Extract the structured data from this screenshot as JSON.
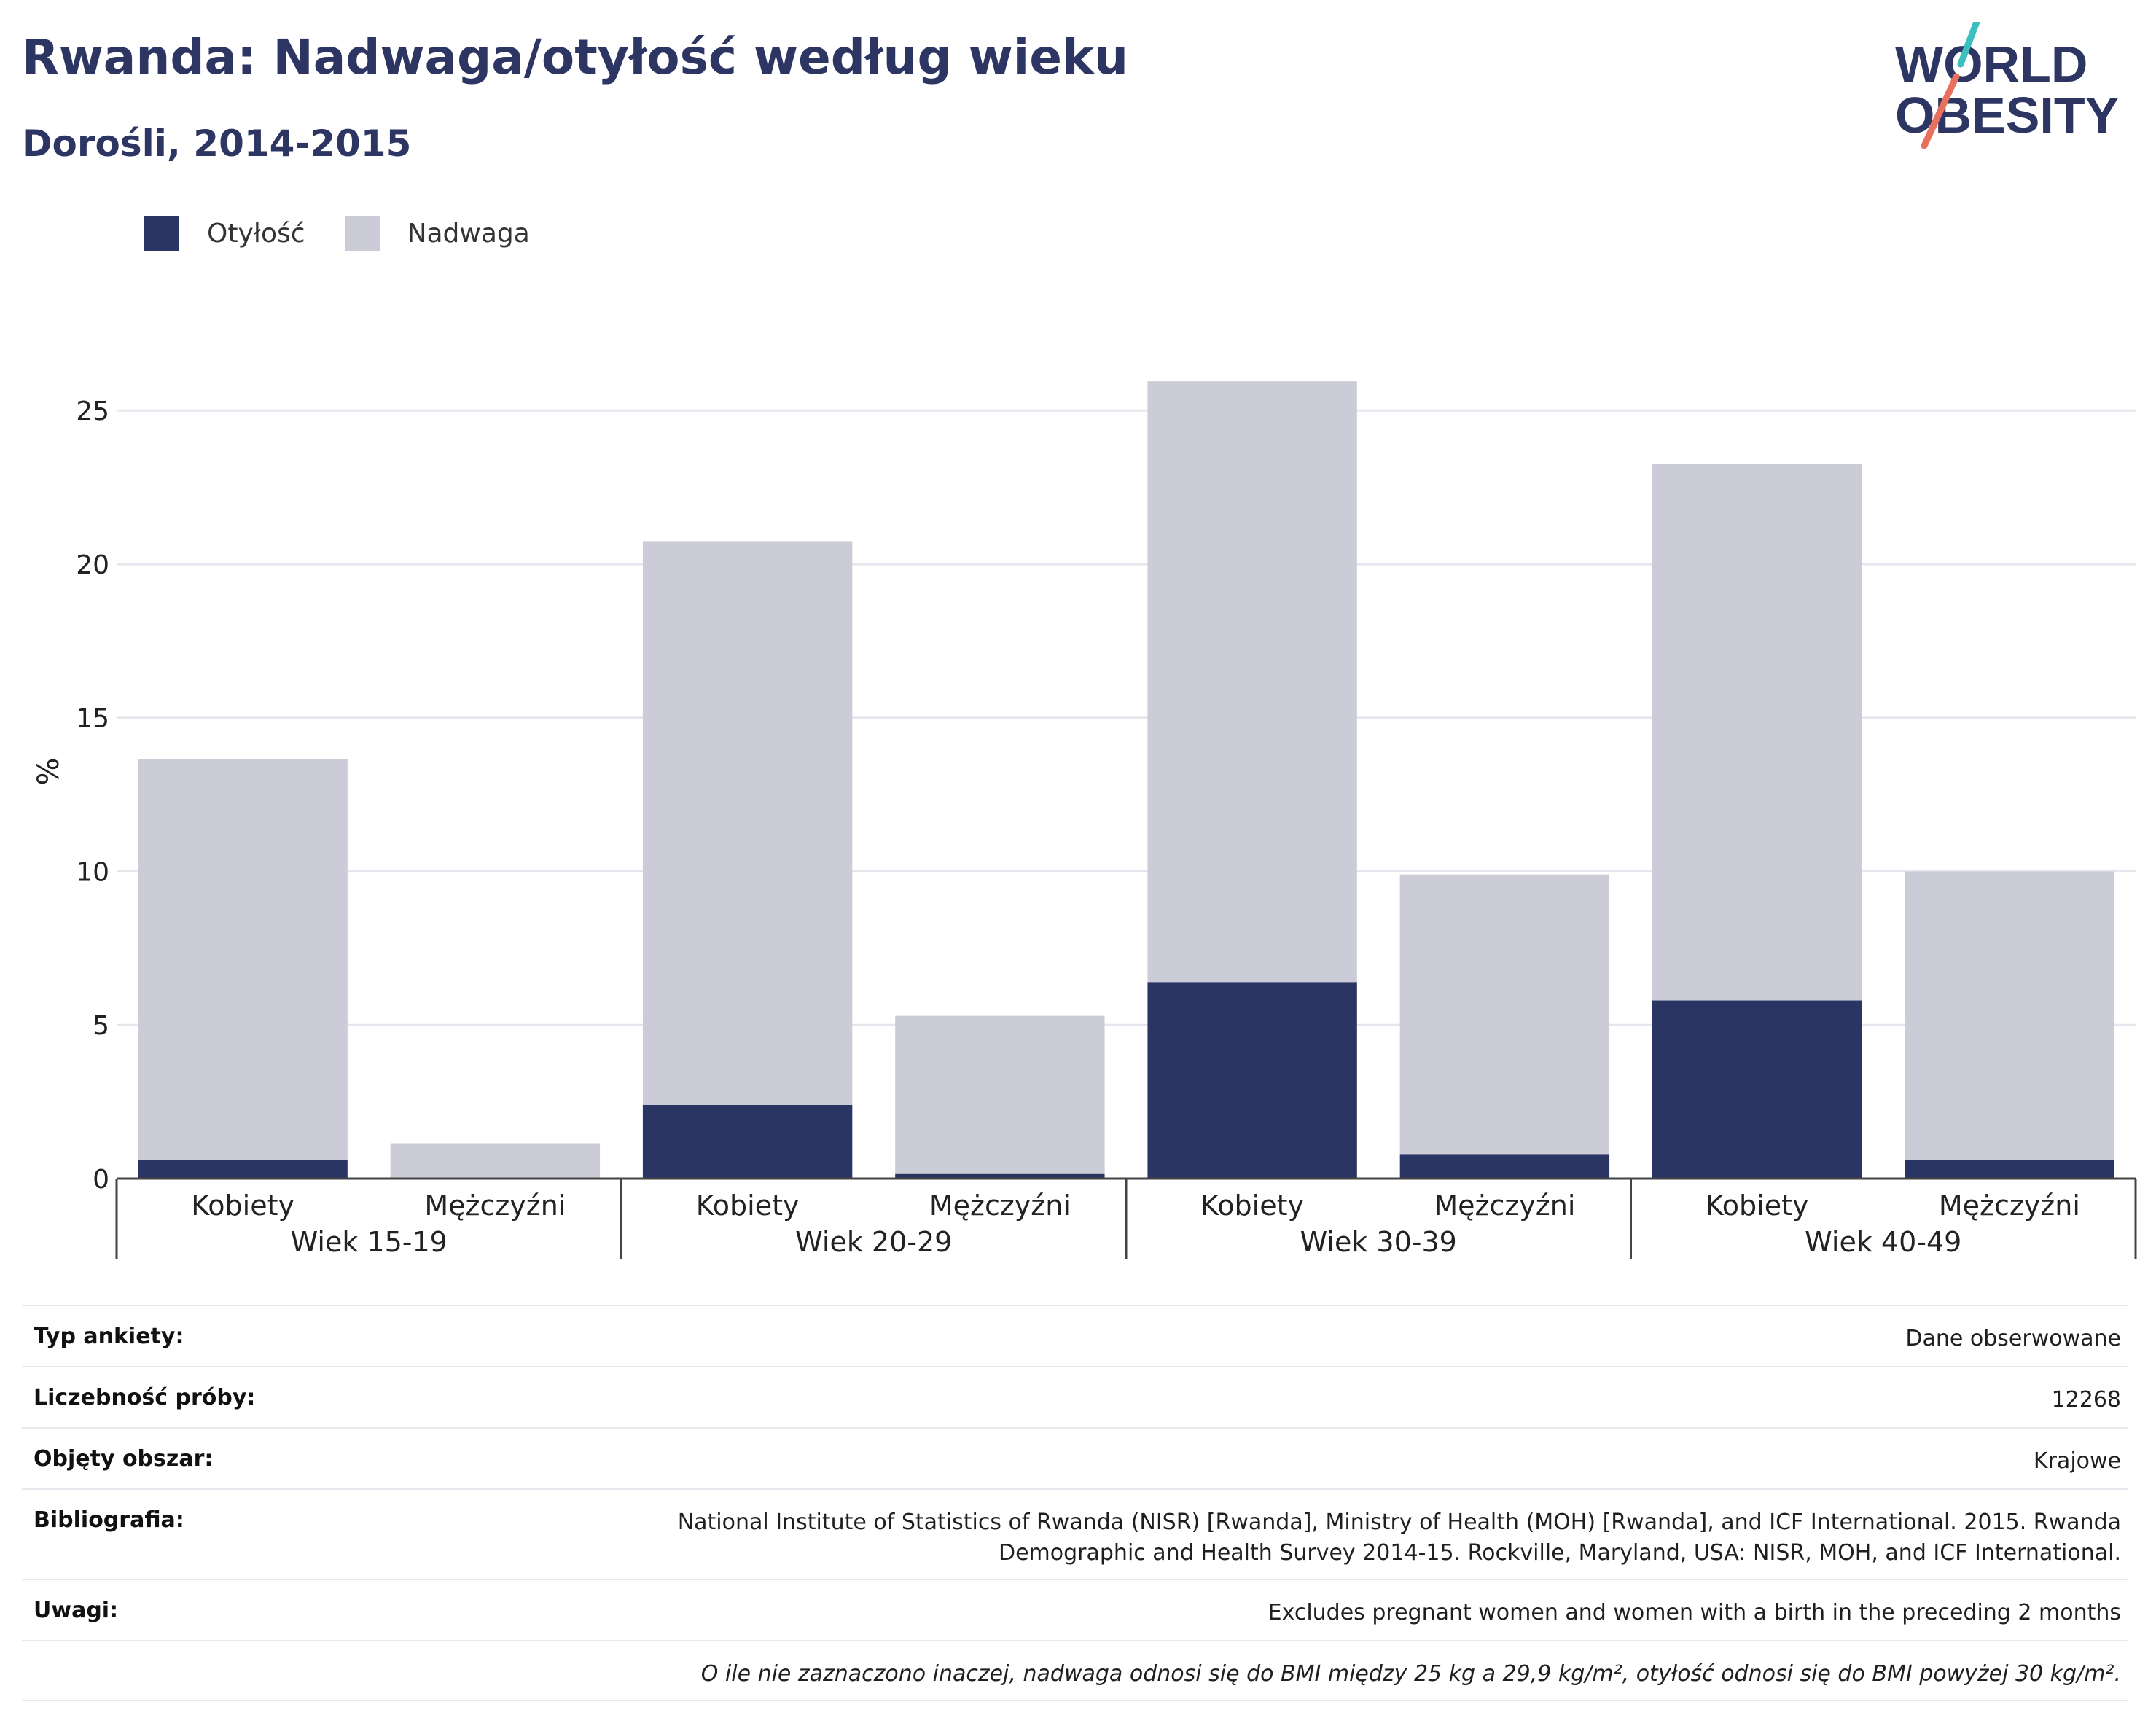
{
  "header": {
    "title": "Rwanda: Nadwaga/otyłość według wieku",
    "subtitle": "Dorośli, 2014-2015"
  },
  "logo": {
    "line1": "WORLD",
    "line2": "OBESITY",
    "colors": {
      "text": "#2d3562",
      "slash_top": "#3cbfbf",
      "slash_bottom": "#e8705e"
    }
  },
  "legend": [
    {
      "label": "Otyłość",
      "color": "#2b3564"
    },
    {
      "label": "Nadwaga",
      "color": "#cbccd8"
    }
  ],
  "chart_data": {
    "type": "bar",
    "stacked": true,
    "ylabel": "%",
    "ylim": [
      0,
      26.5
    ],
    "yticks": [
      0,
      5,
      10,
      15,
      20,
      25
    ],
    "grid": true,
    "legend_position": "top-left",
    "groups": [
      "Wiek 15-19",
      "Wiek 20-29",
      "Wiek 30-39",
      "Wiek 40-49"
    ],
    "categories": [
      "Kobiety",
      "Mężczyźni",
      "Kobiety",
      "Mężczyźni",
      "Kobiety",
      "Mężczyźni",
      "Kobiety",
      "Mężczyźni"
    ],
    "series": [
      {
        "name": "Otyłość",
        "color": "#2b3564",
        "values": [
          0.6,
          0.0,
          2.4,
          0.15,
          6.4,
          0.8,
          5.8,
          0.6
        ]
      },
      {
        "name": "Nadwaga",
        "color": "#cbccd8",
        "values": [
          13.05,
          1.15,
          18.35,
          5.15,
          19.55,
          9.1,
          17.45,
          9.4
        ]
      }
    ]
  },
  "metadata": {
    "rows": [
      {
        "label": "Typ ankiety:",
        "value": "Dane obserwowane"
      },
      {
        "label": "Liczebność próby:",
        "value": "12268"
      },
      {
        "label": "Objęty obszar:",
        "value": "Krajowe"
      },
      {
        "label": "Bibliografia:",
        "value_lines": [
          "National Institute of Statistics of Rwanda (NISR) [Rwanda], Ministry of Health (MOH) [Rwanda], and ICF International. 2015. Rwanda",
          "Demographic and Health Survey 2014-15. Rockville, Maryland, USA: NISR, MOH, and ICF International."
        ]
      },
      {
        "label": "Uwagi:",
        "value": "Excludes pregnant women and women with a birth in the preceding 2 months"
      }
    ],
    "footnote": "O ile nie zaznaczono inaczej, nadwaga odnosi się do BMI między 25 kg a 29,9 kg/m², otyłość odnosi się do BMI powyżej 30 kg/m²."
  }
}
